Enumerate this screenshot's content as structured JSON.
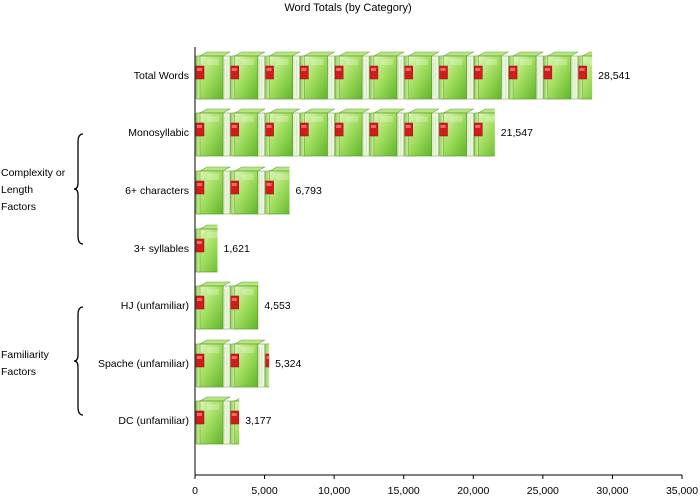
{
  "chart_data": {
    "type": "bar",
    "orientation": "horizontal",
    "title": "Word Totals (by Category)",
    "xlabel": "",
    "ylabel": "",
    "categories": [
      "Total Words",
      "Monosyllabic",
      "6+ characters",
      "3+ syllables",
      "HJ (unfamiliar)",
      "Spache (unfamiliar)",
      "DC (unfamiliar)"
    ],
    "values": [
      28541,
      21547,
      6793,
      1621,
      4553,
      5324,
      3177
    ],
    "data_labels": [
      "28,541",
      "21,547",
      "6,793",
      "1,621",
      "4,553",
      "5,324",
      "3,177"
    ],
    "xlim": [
      0,
      35000
    ],
    "x_ticks": [
      0,
      5000,
      10000,
      15000,
      20000,
      25000,
      30000,
      35000
    ],
    "x_tick_labels": [
      "0",
      "5,000",
      "10,000",
      "15,000",
      "20,000",
      "25,000",
      "30,000",
      "35,000"
    ],
    "unit_per_icon": 2500,
    "bar_style": "pictograph-book-icons",
    "grid": false,
    "legend": "none",
    "groups": [
      {
        "label_lines": [
          "Complexity or",
          "Length",
          "Factors"
        ],
        "categories": [
          "Monosyllabic",
          "6+ characters",
          "3+ syllables"
        ]
      },
      {
        "label_lines": [
          "Familiarity",
          "Factors"
        ],
        "categories": [
          "HJ (unfamiliar)",
          "Spache (unfamiliar)",
          "DC (unfamiliar)"
        ]
      }
    ],
    "colors": {
      "book_green": "#8fd24a",
      "book_green_light": "#d9f5b0",
      "book_spine_red": "#d21c1c",
      "axis": "#000000"
    }
  }
}
